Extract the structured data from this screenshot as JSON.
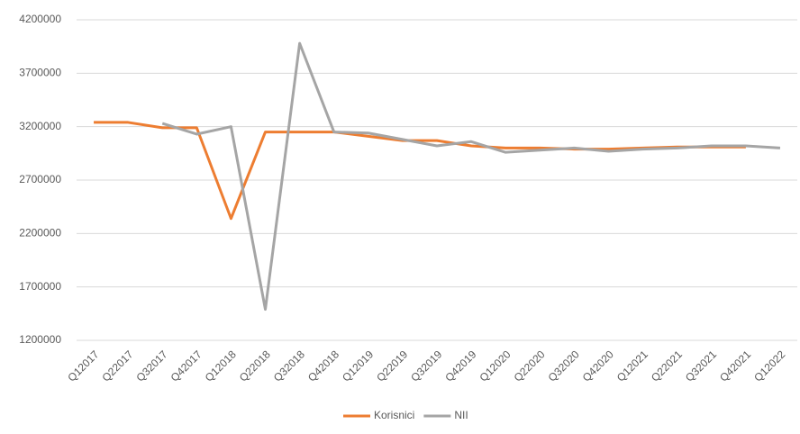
{
  "chart_data": {
    "type": "line",
    "categories": [
      "Q12017",
      "Q22017",
      "Q32017",
      "Q42017",
      "Q12018",
      "Q22018",
      "Q32018",
      "Q42018",
      "Q12019",
      "Q22019",
      "Q32019",
      "Q42019",
      "Q12020",
      "Q22020",
      "Q32020",
      "Q42020",
      "Q12021",
      "Q22021",
      "Q32021",
      "Q42021",
      "Q12022"
    ],
    "series": [
      {
        "name": "Korisnici",
        "color": "#ed7d31",
        "values": [
          3240000,
          3240000,
          3190000,
          3190000,
          2340000,
          3150000,
          3150000,
          3150000,
          3110000,
          3070000,
          3070000,
          3020000,
          3000000,
          3000000,
          2990000,
          2990000,
          3000000,
          3010000,
          3010000,
          3010000,
          null
        ]
      },
      {
        "name": "NII",
        "color": "#a5a5a5",
        "values": [
          null,
          null,
          3230000,
          3130000,
          3200000,
          1490000,
          3980000,
          3150000,
          3140000,
          3080000,
          3020000,
          3060000,
          2960000,
          2980000,
          3000000,
          2970000,
          2990000,
          3000000,
          3020000,
          3020000,
          3000000
        ]
      }
    ],
    "ylim": [
      1200000,
      4200000
    ],
    "yticks": [
      1200000,
      1700000,
      2200000,
      2700000,
      3200000,
      3700000,
      4200000
    ],
    "grid": true,
    "legend": "bottom"
  }
}
